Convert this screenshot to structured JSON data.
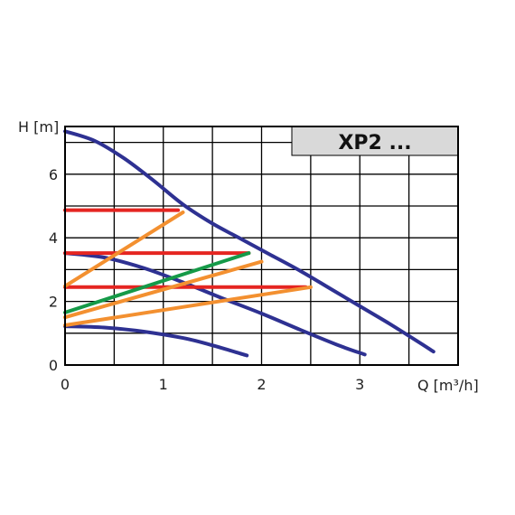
{
  "chart_data": {
    "type": "line",
    "title": "",
    "badge": "XP2 ...",
    "xlabel": "Q [m³/h]",
    "ylabel": "H [m]",
    "xlim": [
      0,
      4.0
    ],
    "ylim": [
      0,
      7.5
    ],
    "xticks": [
      0,
      1,
      2,
      3
    ],
    "yticks": [
      0,
      2,
      4,
      6
    ],
    "grid": true,
    "colors": {
      "curve": "#2e3192",
      "red": "#e52521",
      "orange": "#f39030",
      "green": "#159a48",
      "badge_fill": "#d9d9d9"
    },
    "series": [
      {
        "color": "#2e3192",
        "x": [
          0,
          0.3,
          0.6,
          0.9,
          1.2,
          1.5,
          1.8,
          2.1,
          2.4,
          2.7,
          3.0,
          3.3,
          3.6,
          3.75
        ],
        "y": [
          7.35,
          7.05,
          6.5,
          5.8,
          5.05,
          4.45,
          3.95,
          3.45,
          2.95,
          2.4,
          1.85,
          1.3,
          0.72,
          0.42
        ]
      },
      {
        "color": "#2e3192",
        "x": [
          0,
          0.4,
          0.8,
          1.2,
          1.6,
          2.0,
          2.4,
          2.8,
          3.05
        ],
        "y": [
          3.52,
          3.38,
          3.05,
          2.6,
          2.1,
          1.62,
          1.1,
          0.6,
          0.33
        ]
      },
      {
        "color": "#2e3192",
        "x": [
          0,
          0.4,
          0.8,
          1.2,
          1.5,
          1.85
        ],
        "y": [
          1.22,
          1.18,
          1.05,
          0.85,
          0.62,
          0.3
        ]
      },
      {
        "color": "#e52521",
        "x": [
          0,
          1.15
        ],
        "y": [
          4.87,
          4.87
        ]
      },
      {
        "color": "#e52521",
        "x": [
          0,
          1.87
        ],
        "y": [
          3.52,
          3.52
        ]
      },
      {
        "color": "#e52521",
        "x": [
          0,
          2.45
        ],
        "y": [
          2.45,
          2.45
        ]
      },
      {
        "color": "#159a48",
        "x": [
          0,
          1.87
        ],
        "y": [
          1.65,
          3.52
        ]
      },
      {
        "color": "#f39030",
        "x": [
          0,
          1.2
        ],
        "y": [
          2.48,
          4.8
        ]
      },
      {
        "color": "#f39030",
        "x": [
          0,
          2.0
        ],
        "y": [
          1.5,
          3.25
        ]
      },
      {
        "color": "#f39030",
        "x": [
          0,
          2.5
        ],
        "y": [
          1.25,
          2.45
        ]
      }
    ]
  }
}
